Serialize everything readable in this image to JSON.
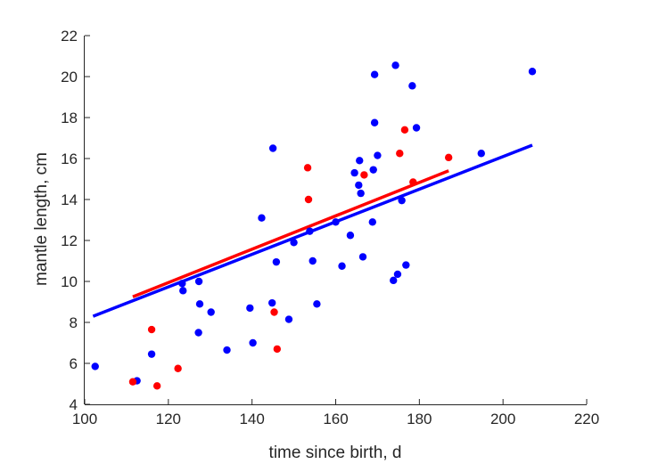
{
  "chart_data": {
    "type": "scatter",
    "title": "",
    "xlabel": "time since birth, d",
    "ylabel": "mantle length, cm",
    "xlim": [
      100,
      220
    ],
    "ylim": [
      4,
      22
    ],
    "xticks": [
      100,
      120,
      140,
      160,
      180,
      200,
      220
    ],
    "yticks": [
      4,
      6,
      8,
      10,
      12,
      14,
      16,
      18,
      20,
      22
    ],
    "grid": false,
    "series": [
      {
        "name": "blue",
        "color": "#0000ff",
        "points": [
          [
            102.5,
            5.85
          ],
          [
            112.5,
            5.15
          ],
          [
            116.0,
            6.45
          ],
          [
            123.3,
            9.9
          ],
          [
            123.5,
            9.55
          ],
          [
            127.3,
            10.0
          ],
          [
            127.5,
            8.9
          ],
          [
            127.2,
            7.5
          ],
          [
            130.2,
            8.5
          ],
          [
            134.0,
            6.65
          ],
          [
            139.5,
            8.7
          ],
          [
            140.2,
            7.0
          ],
          [
            142.3,
            13.1
          ],
          [
            144.8,
            8.95
          ],
          [
            145.0,
            16.5
          ],
          [
            145.8,
            10.95
          ],
          [
            148.8,
            8.15
          ],
          [
            150.0,
            11.9
          ],
          [
            153.8,
            12.45
          ],
          [
            154.5,
            11.0
          ],
          [
            155.5,
            8.9
          ],
          [
            160.0,
            12.9
          ],
          [
            161.5,
            10.75
          ],
          [
            163.5,
            12.25
          ],
          [
            164.5,
            15.3
          ],
          [
            165.5,
            14.7
          ],
          [
            165.7,
            15.9
          ],
          [
            166.0,
            14.3
          ],
          [
            166.5,
            11.2
          ],
          [
            168.8,
            12.9
          ],
          [
            169.0,
            15.45
          ],
          [
            169.3,
            17.75
          ],
          [
            169.3,
            20.1
          ],
          [
            170.0,
            16.15
          ],
          [
            173.8,
            10.05
          ],
          [
            174.3,
            20.55
          ],
          [
            174.8,
            10.35
          ],
          [
            175.8,
            13.95
          ],
          [
            176.8,
            10.8
          ],
          [
            178.3,
            19.55
          ],
          [
            179.3,
            17.5
          ],
          [
            194.8,
            16.25
          ],
          [
            207.0,
            20.25
          ]
        ],
        "fit": {
          "x": [
            102,
            207
          ],
          "y": [
            8.3,
            16.65
          ]
        }
      },
      {
        "name": "red",
        "color": "#ff0000",
        "points": [
          [
            111.5,
            5.1
          ],
          [
            116.0,
            7.65
          ],
          [
            117.3,
            4.9
          ],
          [
            122.3,
            5.75
          ],
          [
            145.3,
            8.5
          ],
          [
            146.0,
            6.7
          ],
          [
            153.3,
            15.55
          ],
          [
            153.5,
            14.0
          ],
          [
            166.8,
            15.2
          ],
          [
            175.3,
            16.25
          ],
          [
            176.5,
            17.4
          ],
          [
            178.5,
            14.85
          ],
          [
            187.0,
            16.05
          ]
        ],
        "fit": {
          "x": [
            111.5,
            187
          ],
          "y": [
            9.25,
            15.4
          ]
        }
      }
    ]
  }
}
